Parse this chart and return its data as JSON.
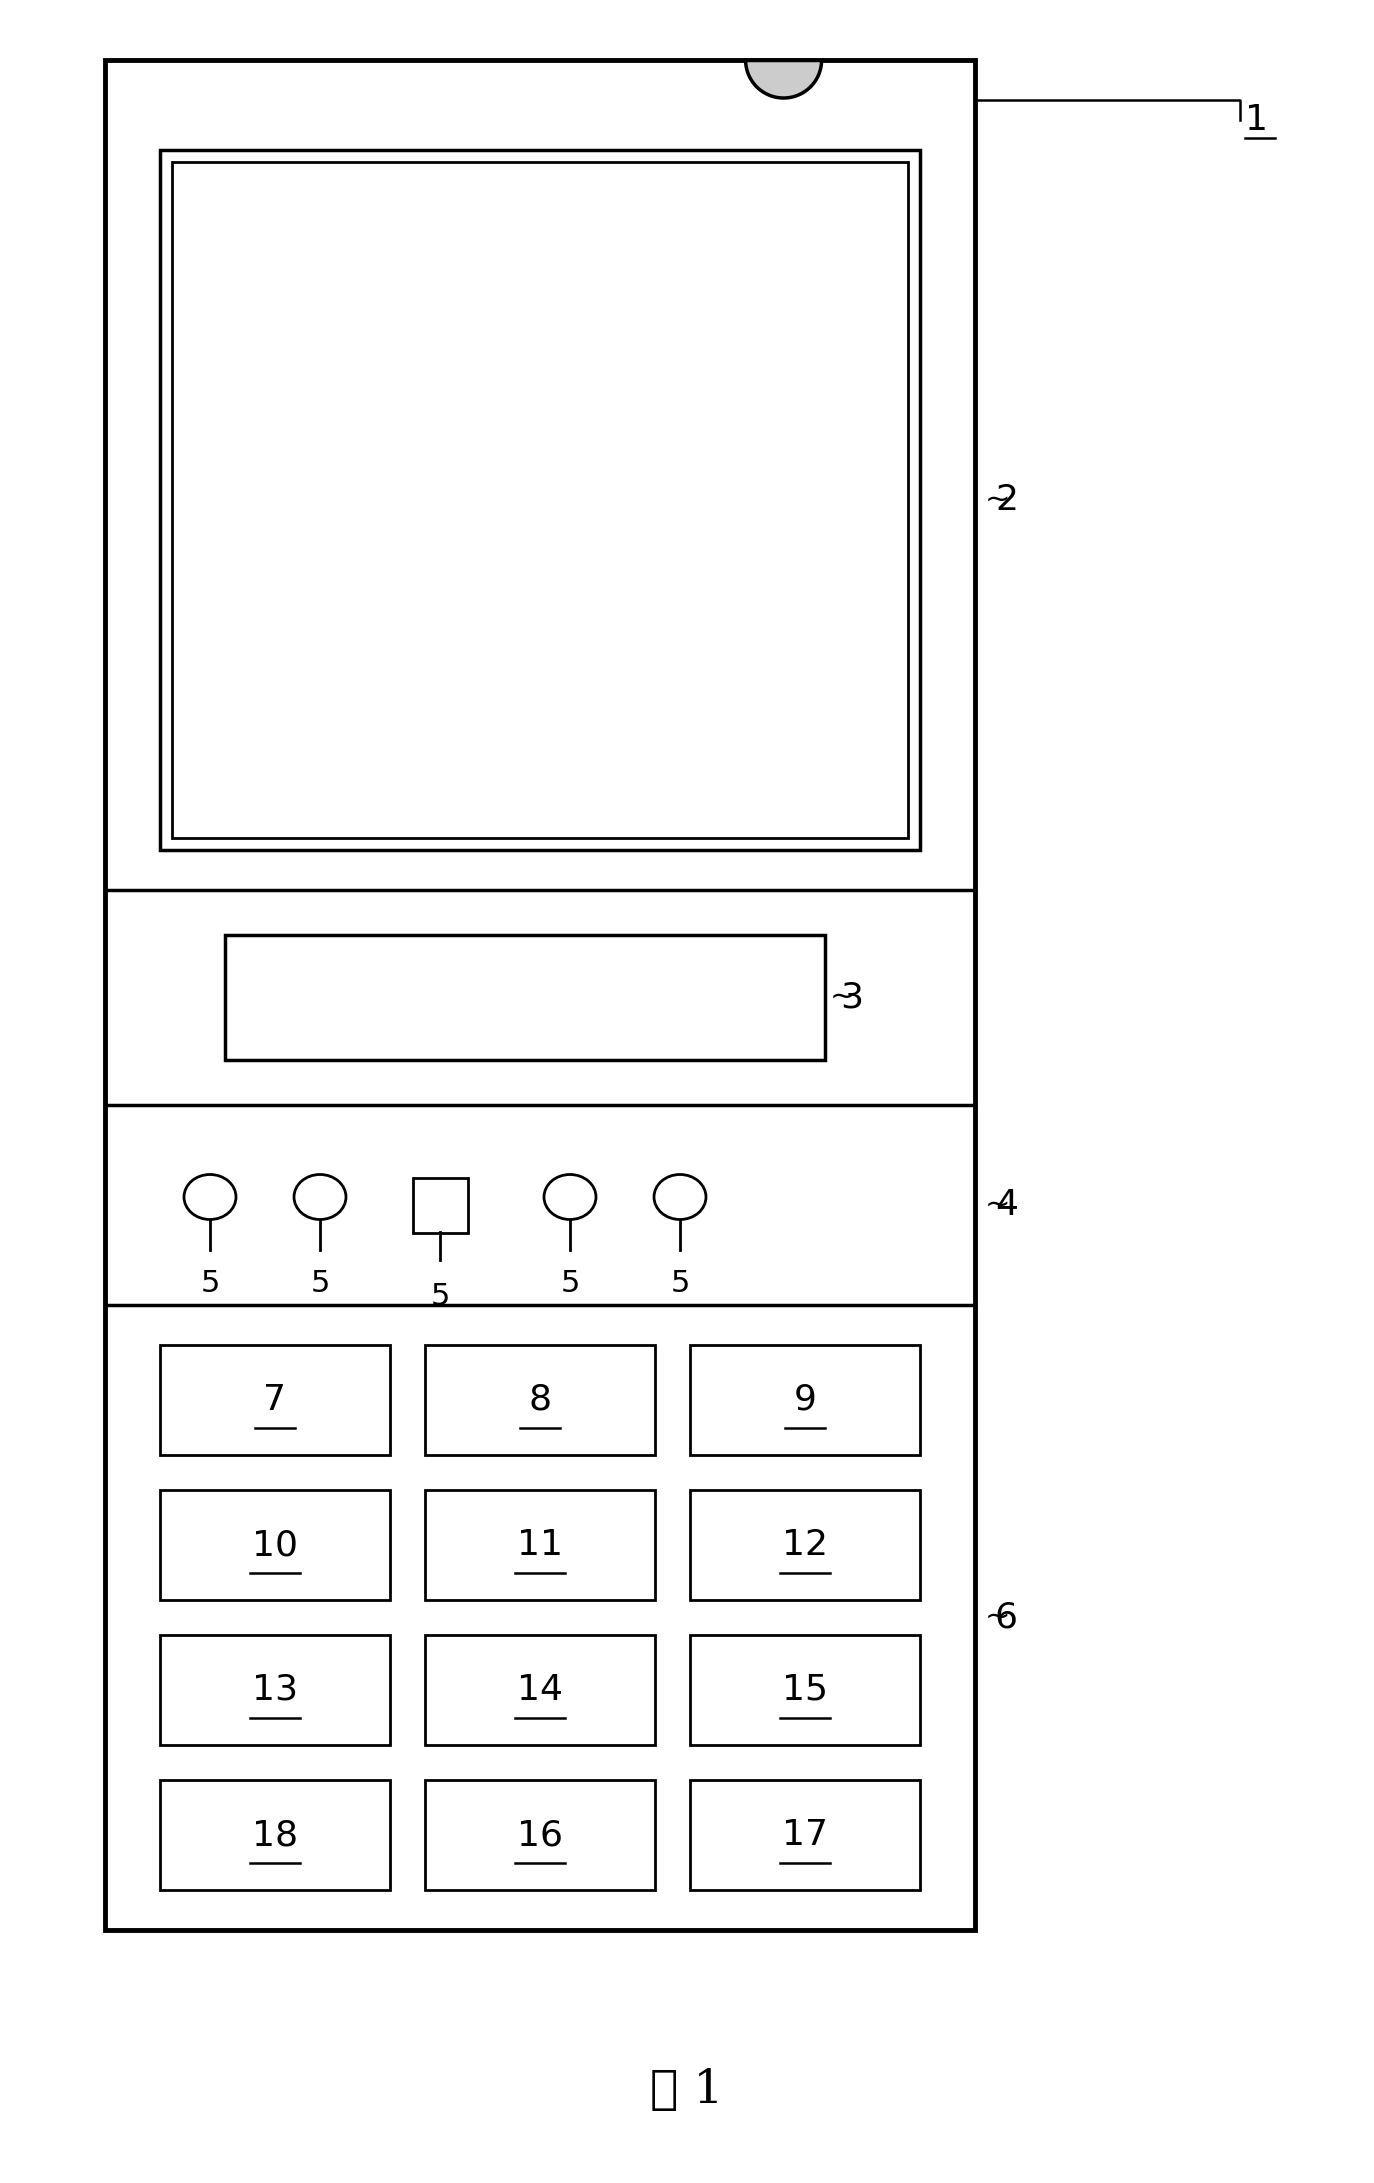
{
  "fig_width": 13.74,
  "fig_height": 21.83,
  "bg_color": "#ffffff",
  "line_color": "#000000",
  "caption_text": "图 1"
}
